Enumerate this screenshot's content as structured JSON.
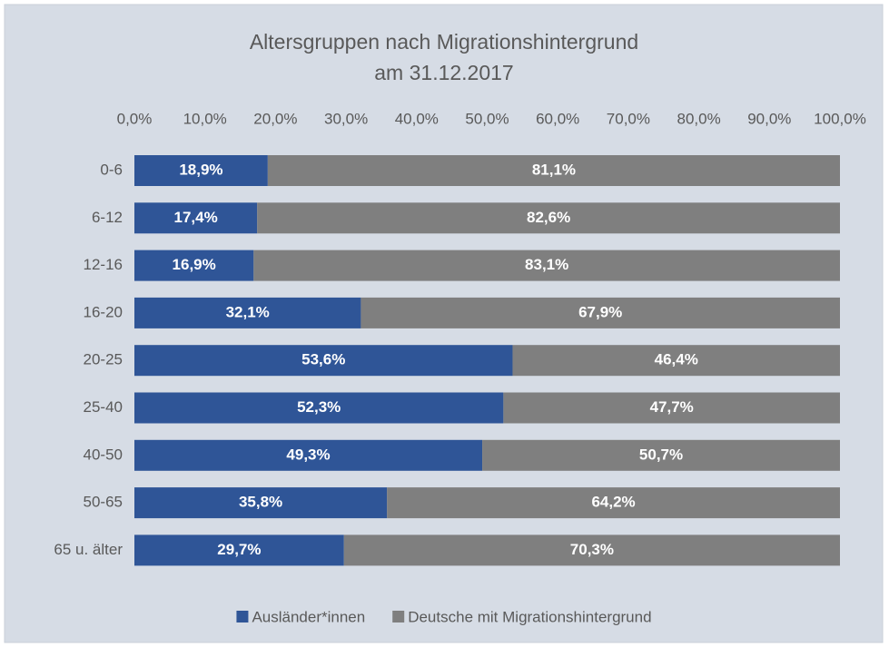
{
  "chart_data": {
    "type": "bar",
    "orientation": "horizontal",
    "stacked": true,
    "title": "Altersgruppen nach Migrationshintergrund",
    "subtitle": "am 31.12.2017",
    "categories": [
      "0-6",
      "6-12",
      "12-16",
      "16-20",
      "20-25",
      "25-40",
      "40-50",
      "50-65",
      "65 u. älter"
    ],
    "series": [
      {
        "name": "Ausländer*innen",
        "color": "#2f5597",
        "values": [
          18.9,
          17.4,
          16.9,
          32.1,
          53.6,
          52.3,
          49.3,
          35.8,
          29.7
        ],
        "value_labels": [
          "18,9%",
          "17,4%",
          "16,9%",
          "32,1%",
          "53,6%",
          "52,3%",
          "49,3%",
          "35,8%",
          "29,7%"
        ]
      },
      {
        "name": "Deutsche mit Migrationshintergrund",
        "color": "#7f7f7f",
        "values": [
          81.1,
          82.6,
          83.1,
          67.9,
          46.4,
          47.7,
          50.7,
          64.2,
          70.3
        ],
        "value_labels": [
          "81,1%",
          "82,6%",
          "83,1%",
          "67,9%",
          "46,4%",
          "47,7%",
          "50,7%",
          "64,2%",
          "70,3%"
        ]
      }
    ],
    "xlim": [
      0,
      100
    ],
    "xticks": [
      {
        "value": 0,
        "label": "0,0%"
      },
      {
        "value": 10,
        "label": "10,0%"
      },
      {
        "value": 20,
        "label": "20,0%"
      },
      {
        "value": 30,
        "label": "30,0%"
      },
      {
        "value": 40,
        "label": "40,0%"
      },
      {
        "value": 50,
        "label": "50,0%"
      },
      {
        "value": 60,
        "label": "60,0%"
      },
      {
        "value": 70,
        "label": "70,0%"
      },
      {
        "value": 80,
        "label": "80,0%"
      },
      {
        "value": 90,
        "label": "90,0%"
      },
      {
        "value": 100,
        "label": "100,0%"
      }
    ],
    "grid": false,
    "legend": "bottom"
  }
}
